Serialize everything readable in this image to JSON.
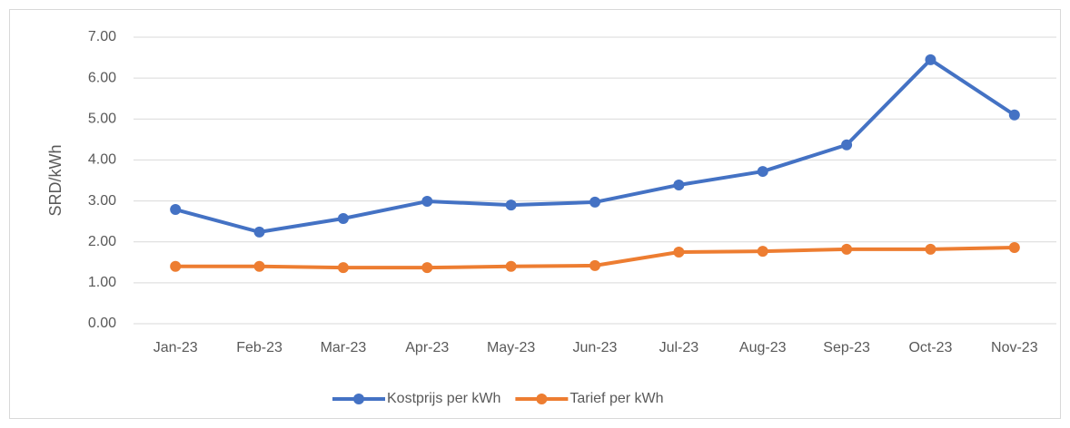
{
  "chart_data": {
    "type": "line",
    "y_label": "SRD/kWh",
    "categories": [
      "Jan-23",
      "Feb-23",
      "Mar-23",
      "Apr-23",
      "May-23",
      "Jun-23",
      "Jul-23",
      "Aug-23",
      "Sep-23",
      "Oct-23",
      "Nov-23"
    ],
    "series": [
      {
        "name": "Kostprijs per kWh",
        "color": "#4472c4",
        "values": [
          2.79,
          2.24,
          2.57,
          2.99,
          2.9,
          2.97,
          3.39,
          3.72,
          4.37,
          6.45,
          5.1
        ]
      },
      {
        "name": "Tarief per kWh",
        "color": "#ed7d31",
        "values": [
          1.4,
          1.4,
          1.37,
          1.37,
          1.4,
          1.42,
          1.75,
          1.77,
          1.82,
          1.82,
          1.86
        ]
      }
    ],
    "ylim": [
      0,
      7
    ],
    "yticks": [
      {
        "value": 0,
        "label": "0.00"
      },
      {
        "value": 1,
        "label": "1.00"
      },
      {
        "value": 2,
        "label": "2.00"
      },
      {
        "value": 3,
        "label": "3.00"
      },
      {
        "value": 4,
        "label": "4.00"
      },
      {
        "value": 5,
        "label": "5.00"
      },
      {
        "value": 6,
        "label": "6.00"
      },
      {
        "value": 7,
        "label": "7.00"
      }
    ],
    "grid": true,
    "legend": "bottom"
  }
}
